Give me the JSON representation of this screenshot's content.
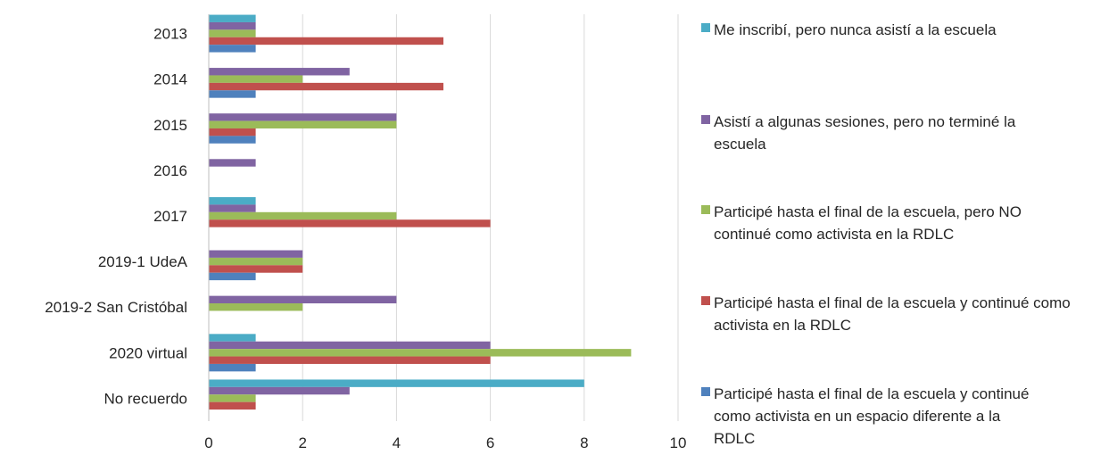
{
  "chart_data": {
    "type": "bar",
    "orientation": "horizontal",
    "categories": [
      "2013",
      "2014",
      "2015",
      "2016",
      "2017",
      "2019-1 UdeA",
      "2019-2 San Cristóbal",
      "2020 virtual",
      "No recuerdo"
    ],
    "series": [
      {
        "name": "Me inscribí, pero nunca asistí a la escuela",
        "color": "#4BACC6",
        "values": [
          1,
          0,
          0,
          0,
          1,
          0,
          0,
          1,
          8
        ]
      },
      {
        "name": "Asistí a algunas sesiones, pero no terminé la escuela",
        "color": "#8064A2",
        "values": [
          1,
          3,
          4,
          1,
          1,
          2,
          4,
          6,
          3
        ]
      },
      {
        "name": "Participé hasta el final de la escuela, pero NO continué como activista en la RDLC",
        "color": "#9BBB59",
        "values": [
          1,
          2,
          4,
          0,
          4,
          2,
          2,
          9,
          1
        ]
      },
      {
        "name": "Participé hasta el final de la escuela y continué como activista en la RDLC",
        "color": "#C0504D",
        "values": [
          5,
          5,
          1,
          0,
          6,
          2,
          0,
          6,
          1
        ]
      },
      {
        "name": "Participé hasta el final de la escuela y continué como activista en un espacio diferente a la RDLC",
        "color": "#4F81BD",
        "values": [
          1,
          1,
          1,
          0,
          0,
          1,
          0,
          1,
          0
        ]
      }
    ],
    "xlim": [
      0,
      10
    ],
    "xticks": [
      "0",
      "2",
      "4",
      "6",
      "8",
      "10"
    ],
    "grid": true,
    "legend_position": "right"
  }
}
